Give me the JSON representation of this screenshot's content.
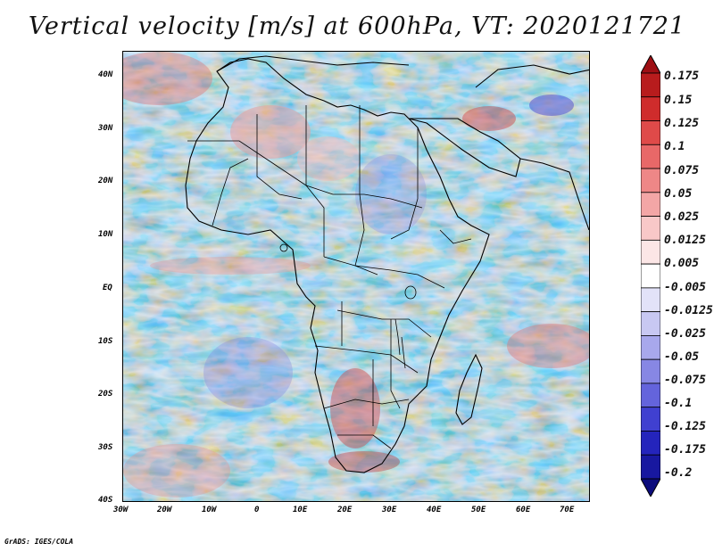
{
  "title": "Vertical velocity [m/s] at 600hPa, VT: 2020121721",
  "credit": "GrADS: IGES/COLA",
  "map": {
    "lon_range": [
      -30,
      75
    ],
    "lat_range": [
      -40,
      45
    ],
    "lat_labels": [
      "40N",
      "30N",
      "20N",
      "10N",
      "EQ",
      "10S",
      "20S",
      "30S",
      "40S"
    ],
    "lon_labels": [
      "30W",
      "20W",
      "10W",
      "0",
      "10E",
      "20E",
      "30E",
      "40E",
      "50E",
      "60E",
      "70E"
    ],
    "lat_values": [
      40,
      30,
      20,
      10,
      0,
      -10,
      -20,
      -30,
      -40
    ],
    "lon_values": [
      -30,
      -20,
      -10,
      0,
      10,
      20,
      30,
      40,
      50,
      60,
      70
    ]
  },
  "colorbar": {
    "labels": [
      "0.175",
      "0.15",
      "0.125",
      "0.1",
      "0.075",
      "0.05",
      "0.025",
      "0.0125",
      "0.005",
      "-0.005",
      "-0.0125",
      "-0.025",
      "-0.05",
      "-0.075",
      "-0.1",
      "-0.125",
      "-0.175",
      "-0.2"
    ],
    "colors": [
      "#9e0f14",
      "#b81c1d",
      "#cf2c2c",
      "#df4a49",
      "#e86868",
      "#ee8787",
      "#f3a6a6",
      "#f8c8c8",
      "#fce6e6",
      "#ffffff",
      "#e2e2f8",
      "#c8c8f2",
      "#a8a8ec",
      "#8787e4",
      "#6464dc",
      "#4040d0",
      "#2424bc",
      "#1818a0",
      "#0c0c7c"
    ]
  },
  "chart_data": {
    "type": "heatmap",
    "title": "Vertical velocity [m/s] at 600hPa, VT: 2020121721",
    "variable": "Vertical velocity",
    "units": "m/s",
    "level": "600hPa",
    "valid_time": "2020121721",
    "xlim": [
      -30,
      75
    ],
    "ylim": [
      -40,
      45
    ],
    "x_ticks": [
      "30W",
      "20W",
      "10W",
      "0",
      "10E",
      "20E",
      "30E",
      "40E",
      "50E",
      "60E",
      "70E"
    ],
    "y_ticks": [
      "40N",
      "30N",
      "20N",
      "10N",
      "EQ",
      "10S",
      "20S",
      "30S",
      "40S"
    ],
    "levels": [
      0.175,
      0.15,
      0.125,
      0.1,
      0.075,
      0.05,
      0.025,
      0.0125,
      0.005,
      -0.005,
      -0.0125,
      -0.025,
      -0.05,
      -0.075,
      -0.1,
      -0.125,
      -0.175,
      -0.2
    ]
  }
}
